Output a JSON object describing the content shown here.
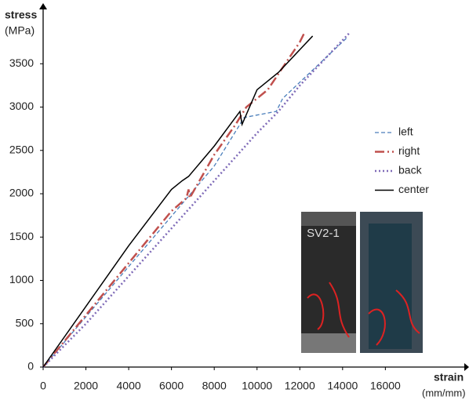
{
  "chart_data": {
    "type": "line",
    "y_label": "stress",
    "y_unit": "(MPa)",
    "x_label": "strain",
    "x_unit": "(mm/mm)",
    "annotation": "SV2-1",
    "xlim": [
      0,
      19800
    ],
    "ylim": [
      0,
      4100
    ],
    "xticks": [
      0,
      2000,
      4000,
      6000,
      8000,
      10000,
      12000,
      14000,
      16000
    ],
    "yticks": [
      0,
      500,
      1000,
      1500,
      2000,
      2500,
      3000,
      3500
    ],
    "grid": false,
    "legend": "right",
    "series": [
      {
        "name": "left",
        "color": "#4a7ebb",
        "style": "dashed",
        "x": [
          0,
          2000,
          4000,
          6000,
          8000,
          9400,
          10900,
          11200,
          14200
        ],
        "values": [
          0,
          580,
          1160,
          1740,
          2320,
          2880,
          2950,
          3100,
          3800
        ]
      },
      {
        "name": "right",
        "color": "#c0504d",
        "style": "dashdot",
        "x": [
          0,
          2000,
          4000,
          6000,
          6700,
          6800,
          6850,
          8000,
          9000,
          9500,
          10500,
          12000,
          12200
        ],
        "values": [
          0,
          600,
          1200,
          1800,
          1950,
          2050,
          1950,
          2450,
          2800,
          3000,
          3200,
          3750,
          3850
        ]
      },
      {
        "name": "back",
        "color": "#7f6bb8",
        "style": "dotted",
        "x": [
          0,
          2000,
          4000,
          6000,
          8000,
          10000,
          11000,
          12000,
          14300
        ],
        "values": [
          0,
          500,
          1050,
          1600,
          2150,
          2700,
          2950,
          3250,
          3850
        ]
      },
      {
        "name": "center",
        "color": "#000000",
        "style": "solid",
        "x": [
          0,
          2000,
          4000,
          6000,
          6500,
          6800,
          8000,
          9200,
          9300,
          10000,
          11000,
          12600
        ],
        "values": [
          0,
          700,
          1400,
          2050,
          2150,
          2200,
          2550,
          2950,
          2800,
          3200,
          3400,
          3820
        ]
      }
    ]
  }
}
